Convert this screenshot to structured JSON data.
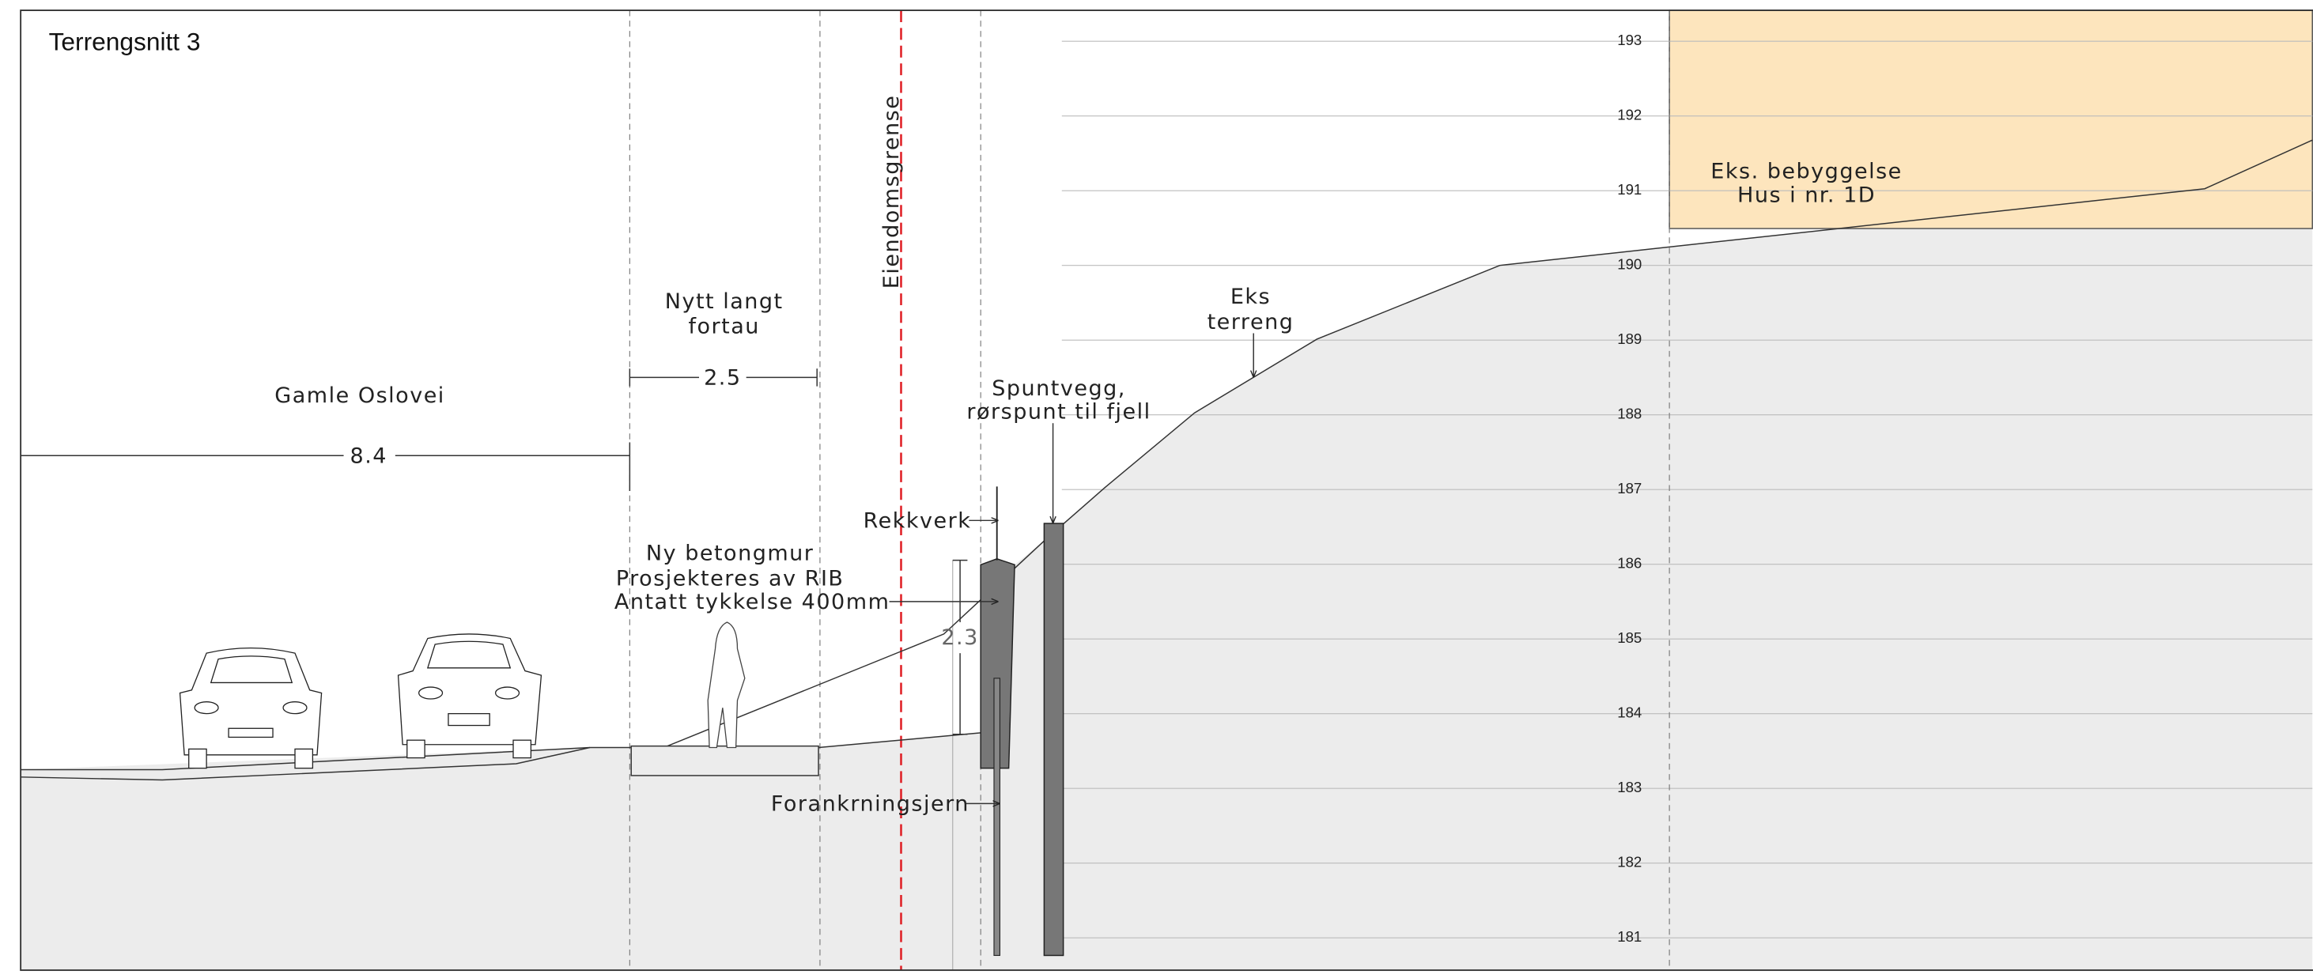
{
  "title": "Terrengsnitt 3",
  "labels": {
    "road": "Gamle Oslovei",
    "sidewalk": [
      "Nytt langt",
      "fortau"
    ],
    "property_line": "Eiendomsgrense",
    "existing_terrain": [
      "Eks",
      "terreng"
    ],
    "sheet_pile": [
      "Spuntvegg,",
      "rørspunt til fjell"
    ],
    "railing": "Rekkverk",
    "wall": [
      "Ny betongmur",
      "Prosjekteres av RIB",
      "Antatt tykkelse 400mm"
    ],
    "anchor": "Forankrningsjern",
    "building": [
      "Eks. bebyggelse",
      "Hus i nr. 1D"
    ]
  },
  "dimensions": {
    "road_width": 8.4,
    "sidewalk_width": 2.5,
    "wall_height": 2.3
  },
  "elevations": [
    193,
    192,
    191,
    190,
    189,
    188,
    187,
    186,
    185,
    184,
    183,
    182,
    181
  ]
}
